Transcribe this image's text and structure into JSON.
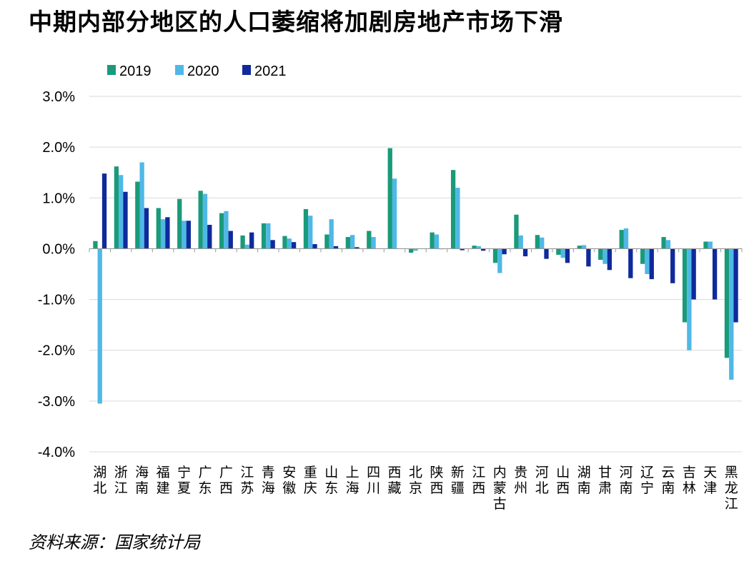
{
  "title": "中期内部分地区的人口萎缩将加剧房地产市场下滑",
  "source": "资料来源：国家统计局",
  "colors": {
    "2019": "#1a9a7a",
    "2020": "#4fb8e6",
    "2021": "#0f2a9a",
    "grid": "#d9d9d9",
    "axis": "#999999"
  },
  "chart_data": {
    "type": "bar",
    "title": "中期内部分地区的人口萎缩将加剧房地产市场下滑",
    "xlabel": "",
    "ylabel": "",
    "ylim": [
      -4.0,
      3.0
    ],
    "yticks": [
      "3.0%",
      "2.0%",
      "1.0%",
      "0.0%",
      "-1.0%",
      "-2.0%",
      "-3.0%",
      "-4.0%"
    ],
    "grid": true,
    "legend_position": "top-left",
    "categories": [
      "湖北",
      "浙江",
      "海南",
      "福建",
      "宁夏",
      "广东",
      "广西",
      "江苏",
      "青海",
      "安徽",
      "重庆",
      "山东",
      "上海",
      "四川",
      "西藏",
      "北京",
      "陕西",
      "新疆",
      "江西",
      "内蒙古",
      "贵州",
      "河北",
      "山西",
      "湖南",
      "甘肃",
      "河南",
      "辽宁",
      "云南",
      "吉林",
      "天津",
      "黑龙江"
    ],
    "series": [
      {
        "name": "2019",
        "values": [
          0.15,
          1.62,
          1.32,
          0.8,
          0.98,
          1.14,
          0.7,
          0.26,
          0.5,
          0.25,
          0.78,
          0.28,
          0.23,
          0.35,
          1.98,
          -0.08,
          0.32,
          1.55,
          0.06,
          -0.28,
          0.67,
          0.27,
          -0.12,
          0.06,
          -0.22,
          0.37,
          -0.3,
          0.23,
          -1.45,
          0.14,
          -2.15
        ]
      },
      {
        "name": "2020",
        "values": [
          -3.05,
          1.45,
          1.7,
          0.58,
          0.55,
          1.08,
          0.74,
          0.08,
          0.5,
          0.2,
          0.65,
          0.58,
          0.27,
          0.23,
          1.38,
          -0.04,
          0.28,
          1.2,
          0.05,
          -0.48,
          0.26,
          0.22,
          -0.18,
          0.07,
          -0.3,
          0.4,
          -0.5,
          0.17,
          -2.0,
          0.14,
          -2.58
        ]
      },
      {
        "name": "2021",
        "values": [
          1.48,
          1.12,
          0.8,
          0.62,
          0.55,
          0.47,
          0.35,
          0.32,
          0.17,
          0.13,
          0.09,
          0.05,
          0.03,
          0.0,
          0.0,
          0.0,
          -0.01,
          -0.03,
          -0.04,
          -0.11,
          -0.15,
          -0.2,
          -0.28,
          -0.35,
          -0.42,
          -0.58,
          -0.6,
          -0.68,
          -1.0,
          -1.0,
          -1.45
        ]
      }
    ]
  }
}
